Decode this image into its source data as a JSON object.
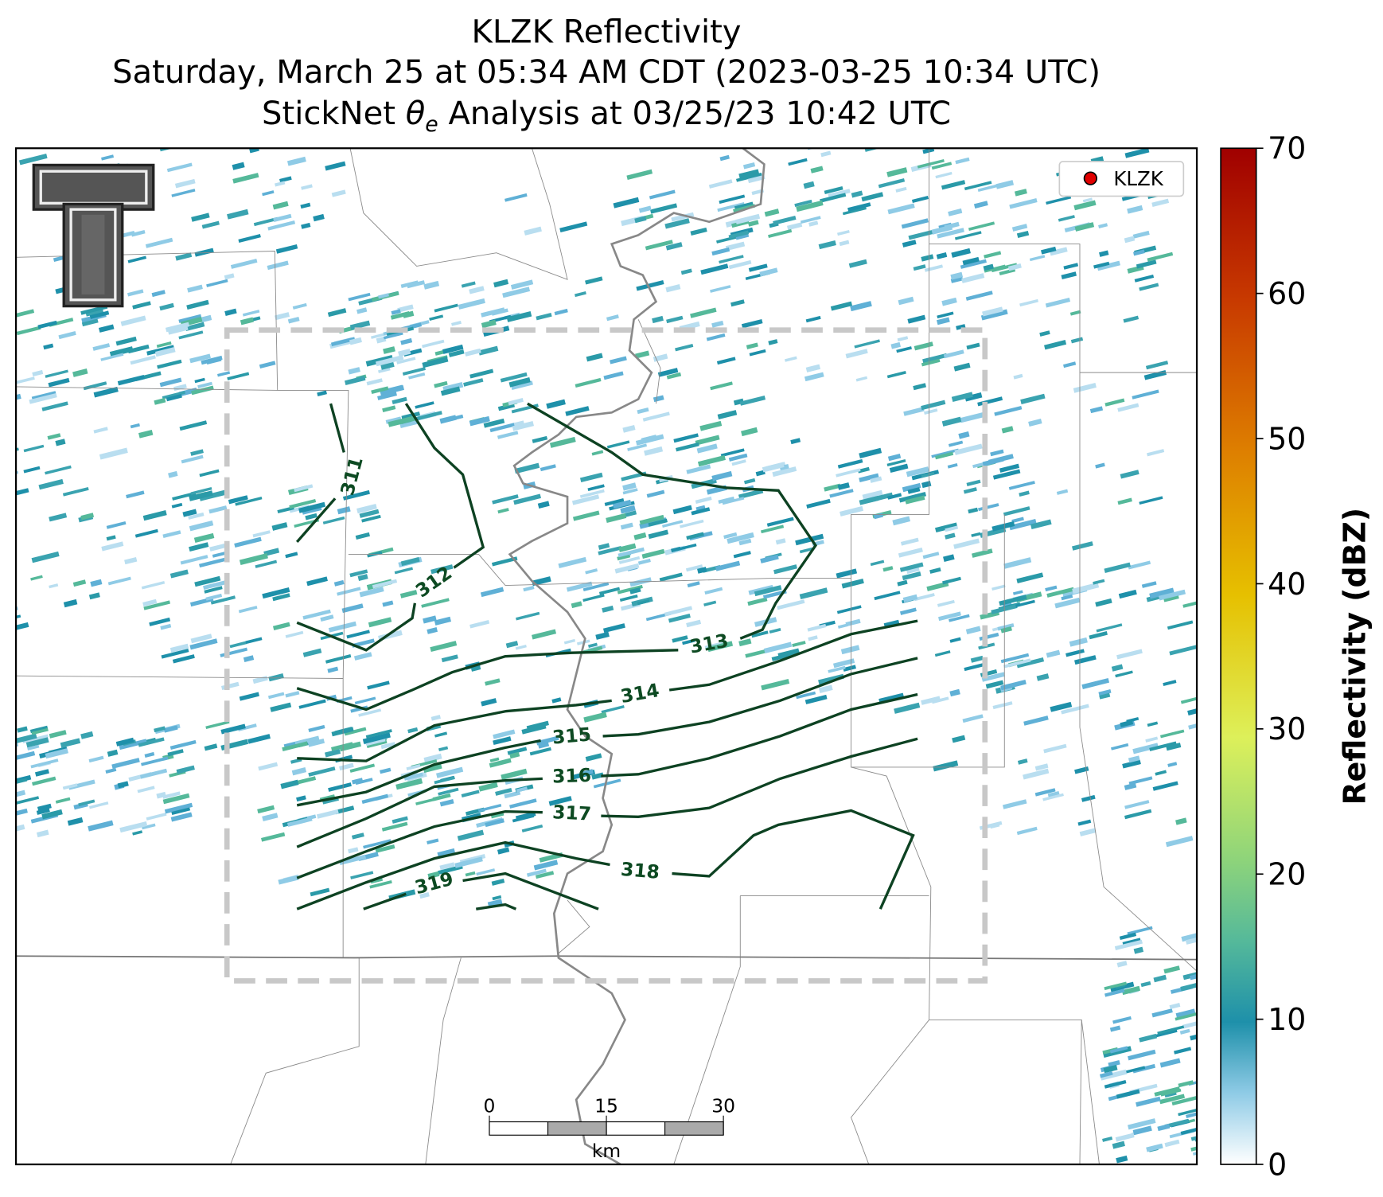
{
  "title_line1": "KLZK Reflectivity",
  "title_line2": "Saturday, March 25 at 05:34 AM CDT (2023-03-25 10:34 UTC)",
  "title_line3": {
    "prefix": "StickNet",
    "symbol": "θ",
    "subscript": "e",
    "suffix": "Analysis at 03/25/23 10:42 UTC"
  },
  "legend": {
    "label": "KLZK",
    "color": "#e00000"
  },
  "colorbar": {
    "label": "Reflectivity (dBZ)",
    "lim": [
      0,
      70
    ],
    "ticks": [
      0,
      10,
      20,
      30,
      40,
      50,
      60,
      70
    ]
  },
  "contours": {
    "levels": [
      311,
      312,
      313,
      314,
      315,
      316,
      317,
      318,
      319
    ],
    "color": "#0d4222"
  },
  "scalebar": {
    "ticks": [
      0,
      15,
      30
    ],
    "unit": "km"
  }
}
